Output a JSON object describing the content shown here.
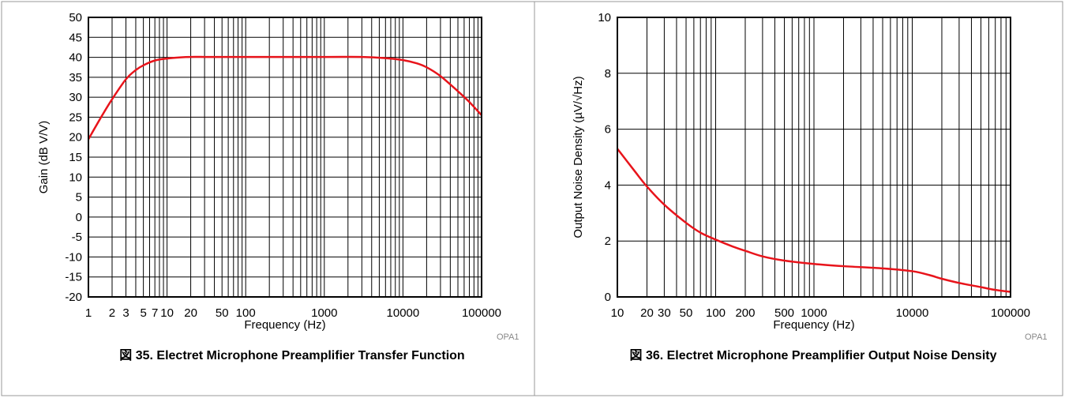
{
  "figures": [
    {
      "caption": "図 35. Electret Microphone Preamplifier Transfer Function",
      "code": "OPA1"
    },
    {
      "caption": "図 36. Electret Microphone Preamplifier Output Noise Density",
      "code": "OPA1"
    }
  ],
  "chart_data": [
    {
      "type": "line",
      "title": "",
      "xlabel": "Frequency (Hz)",
      "ylabel": "Gain (dB V/V)",
      "xscale": "log",
      "xlim": [
        1,
        100000
      ],
      "ylim": [
        -20,
        50
      ],
      "grid": true,
      "xticks": [
        1,
        2,
        3,
        5,
        7,
        10,
        20,
        50,
        100,
        1000,
        10000,
        100000
      ],
      "xtick_labels": [
        "1",
        "2",
        "3",
        "5",
        "7",
        "10",
        "20",
        "50",
        "100",
        "1000",
        "10000",
        "100000"
      ],
      "yticks": [
        -20,
        -15,
        -10,
        -5,
        0,
        5,
        10,
        15,
        20,
        25,
        30,
        35,
        40,
        45,
        50
      ],
      "ytick_labels": [
        "-20",
        "-15",
        "-10",
        "-5",
        "0",
        "5",
        "10",
        "15",
        "20",
        "25",
        "30",
        "35",
        "40",
        "45",
        "50"
      ],
      "line_color": "#e8141b",
      "series": [
        {
          "x": [
            1,
            1.5,
            2,
            3,
            4,
            5,
            7,
            10,
            15,
            20,
            30,
            50,
            100,
            1000,
            3000,
            6000,
            10000,
            15000,
            20000,
            30000,
            50000,
            70000,
            100000
          ],
          "y": [
            19.5,
            25.5,
            29.5,
            34.5,
            36.8,
            38.0,
            39.2,
            39.7,
            40.0,
            40.1,
            40.1,
            40.1,
            40.1,
            40.1,
            40.1,
            39.8,
            39.3,
            38.5,
            37.5,
            35.3,
            31.5,
            28.8,
            25.5
          ]
        }
      ]
    },
    {
      "type": "line",
      "title": "",
      "xlabel": "Frequency (Hz)",
      "ylabel": "Output Noise Density (µV/√Hz)",
      "xscale": "log",
      "xlim": [
        10,
        100000
      ],
      "ylim": [
        0,
        10
      ],
      "grid": true,
      "xticks": [
        10,
        20,
        30,
        50,
        100,
        200,
        500,
        1000,
        10000,
        100000
      ],
      "xtick_labels": [
        "10",
        "20",
        "30",
        "50",
        "100",
        "200",
        "500",
        "1000",
        "10000",
        "100000"
      ],
      "yticks": [
        0,
        2,
        4,
        6,
        8,
        10
      ],
      "ytick_labels": [
        "0",
        "2",
        "4",
        "6",
        "8",
        "10"
      ],
      "line_color": "#e8141b",
      "series": [
        {
          "x": [
            10,
            15,
            20,
            30,
            50,
            70,
            100,
            150,
            200,
            300,
            500,
            1000,
            2000,
            5000,
            10000,
            15000,
            20000,
            30000,
            50000,
            70000,
            100000
          ],
          "y": [
            5.3,
            4.5,
            3.95,
            3.3,
            2.65,
            2.3,
            2.05,
            1.8,
            1.65,
            1.45,
            1.3,
            1.18,
            1.1,
            1.02,
            0.92,
            0.78,
            0.65,
            0.5,
            0.35,
            0.25,
            0.18
          ]
        }
      ]
    }
  ]
}
